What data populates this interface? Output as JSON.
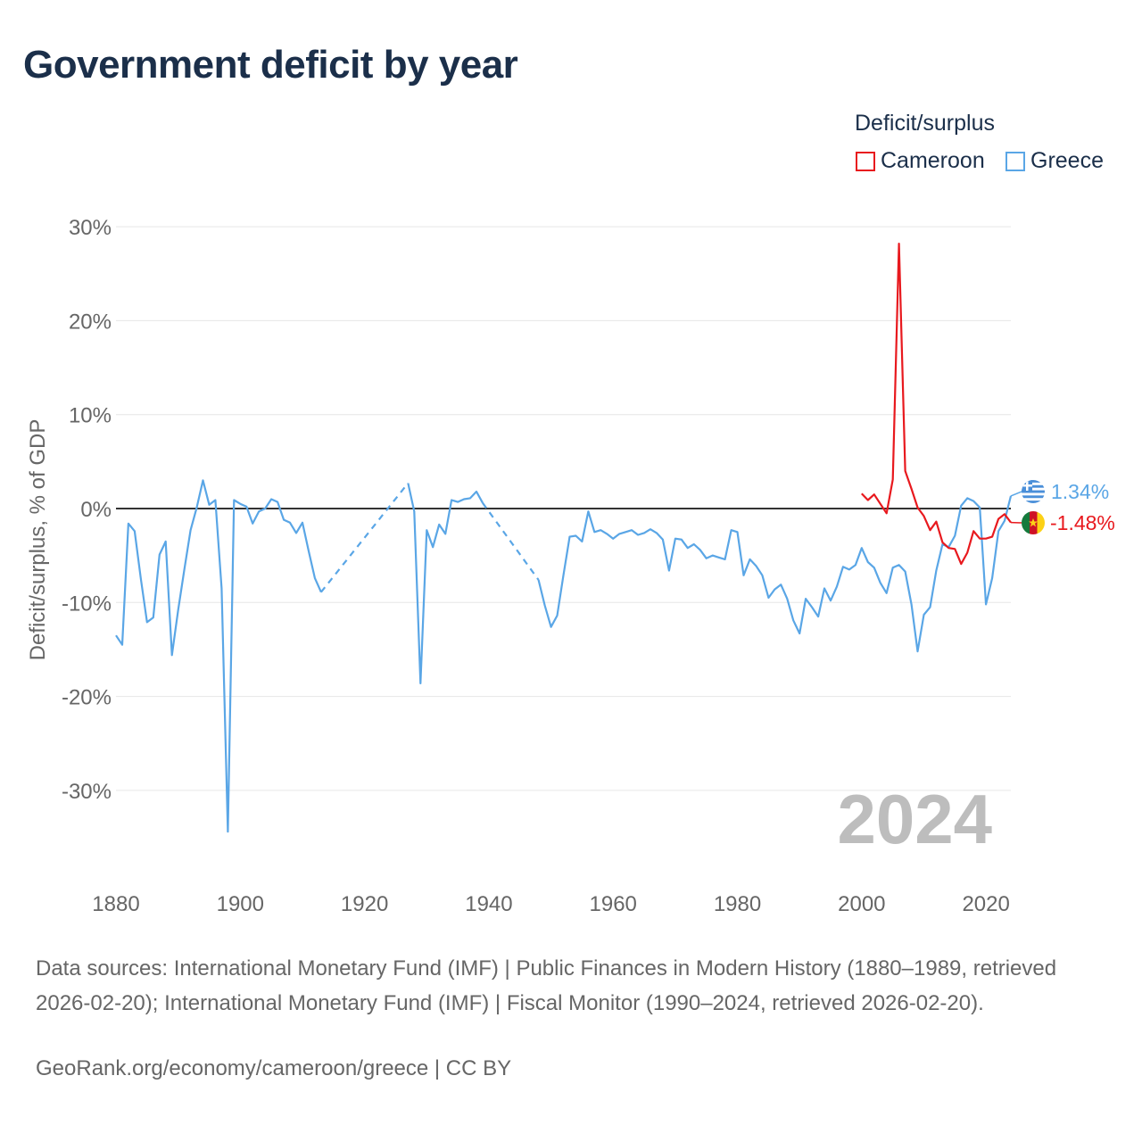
{
  "title": "Government deficit by year",
  "legend": {
    "title": "Deficit/surplus",
    "items": [
      {
        "label": "Cameroon",
        "color": "#e8191e"
      },
      {
        "label": "Greece",
        "color": "#5aa6e6"
      }
    ]
  },
  "chart_data": {
    "type": "line",
    "title": "Government deficit by year",
    "xlabel": "",
    "ylabel": "Deficit/surplus, % of GDP",
    "xlim": [
      1880,
      2024
    ],
    "ylim": [
      -39,
      31
    ],
    "x_ticks": [
      1880,
      1900,
      1920,
      1940,
      1960,
      1980,
      2000,
      2020
    ],
    "y_ticks": [
      30,
      20,
      10,
      0,
      -10,
      -20,
      -30
    ],
    "y_tick_labels": [
      "30%",
      "20%",
      "10%",
      "0%",
      "-10%",
      "-20%",
      "-30%"
    ],
    "grid": true,
    "legend_position": "top-right",
    "watermark_year": "2024",
    "series": [
      {
        "name": "Greece",
        "color": "#5aa6e6",
        "end_label": "1.34%",
        "points": [
          [
            1880,
            -13.5
          ],
          [
            1881,
            -14.5
          ],
          [
            1882,
            -1.6
          ],
          [
            1883,
            -2.4
          ],
          [
            1884,
            -7.5
          ],
          [
            1885,
            -12.1
          ],
          [
            1886,
            -11.6
          ],
          [
            1887,
            -4.9
          ],
          [
            1888,
            -3.5
          ],
          [
            1889,
            -15.6
          ],
          [
            1890,
            -10.8
          ],
          [
            1891,
            -6.5
          ],
          [
            1892,
            -2.3
          ],
          [
            1893,
            0.1
          ],
          [
            1894,
            3.0
          ],
          [
            1895,
            0.4
          ],
          [
            1896,
            0.9
          ],
          [
            1897,
            -8.5
          ],
          [
            1898,
            -34.4
          ],
          [
            1899,
            0.9
          ],
          [
            1900,
            0.5
          ],
          [
            1901,
            0.2
          ],
          [
            1902,
            -1.6
          ],
          [
            1903,
            -0.3
          ],
          [
            1904,
            0.0
          ],
          [
            1905,
            1.0
          ],
          [
            1906,
            0.7
          ],
          [
            1907,
            -1.2
          ],
          [
            1908,
            -1.5
          ],
          [
            1909,
            -2.6
          ],
          [
            1910,
            -1.5
          ],
          [
            1911,
            -4.5
          ],
          [
            1912,
            -7.4
          ],
          [
            1913,
            -8.9
          ],
          null,
          [
            1927,
            2.7
          ],
          [
            1928,
            -0.3
          ],
          [
            1929,
            -18.6
          ],
          [
            1930,
            -2.3
          ],
          [
            1931,
            -4.1
          ],
          [
            1932,
            -1.7
          ],
          [
            1933,
            -2.7
          ],
          [
            1934,
            0.9
          ],
          [
            1935,
            0.7
          ],
          [
            1936,
            1.0
          ],
          [
            1937,
            1.1
          ],
          [
            1938,
            1.8
          ],
          [
            1939,
            0.6
          ],
          null,
          [
            1948,
            -7.6
          ],
          [
            1949,
            -10.3
          ],
          [
            1950,
            -12.6
          ],
          [
            1951,
            -11.4
          ],
          [
            1952,
            -7.1
          ],
          [
            1953,
            -3.0
          ],
          [
            1954,
            -2.9
          ],
          [
            1955,
            -3.5
          ],
          [
            1956,
            -0.3
          ],
          [
            1957,
            -2.5
          ],
          [
            1958,
            -2.3
          ],
          [
            1959,
            -2.7
          ],
          [
            1960,
            -3.2
          ],
          [
            1961,
            -2.7
          ],
          [
            1962,
            -2.5
          ],
          [
            1963,
            -2.3
          ],
          [
            1964,
            -2.8
          ],
          [
            1965,
            -2.6
          ],
          [
            1966,
            -2.2
          ],
          [
            1967,
            -2.6
          ],
          [
            1968,
            -3.3
          ],
          [
            1969,
            -6.6
          ],
          [
            1970,
            -3.2
          ],
          [
            1971,
            -3.3
          ],
          [
            1972,
            -4.2
          ],
          [
            1973,
            -3.8
          ],
          [
            1974,
            -4.4
          ],
          [
            1975,
            -5.3
          ],
          [
            1976,
            -5.0
          ],
          [
            1977,
            -5.2
          ],
          [
            1978,
            -5.4
          ],
          [
            1979,
            -2.3
          ],
          [
            1980,
            -2.5
          ],
          [
            1981,
            -7.1
          ],
          [
            1982,
            -5.4
          ],
          [
            1983,
            -6.1
          ],
          [
            1984,
            -7.1
          ],
          [
            1985,
            -9.5
          ],
          [
            1986,
            -8.6
          ],
          [
            1987,
            -8.1
          ],
          [
            1988,
            -9.6
          ],
          [
            1989,
            -11.9
          ],
          [
            1990,
            -13.3
          ],
          [
            1991,
            -9.6
          ],
          [
            1992,
            -10.5
          ],
          [
            1993,
            -11.5
          ],
          [
            1994,
            -8.5
          ],
          [
            1995,
            -9.8
          ],
          [
            1996,
            -8.3
          ],
          [
            1997,
            -6.2
          ],
          [
            1998,
            -6.5
          ],
          [
            1999,
            -6.0
          ],
          [
            2000,
            -4.2
          ],
          [
            2001,
            -5.7
          ],
          [
            2002,
            -6.3
          ],
          [
            2003,
            -7.9
          ],
          [
            2004,
            -9.0
          ],
          [
            2005,
            -6.3
          ],
          [
            2006,
            -6.0
          ],
          [
            2007,
            -6.7
          ],
          [
            2008,
            -10.2
          ],
          [
            2009,
            -15.2
          ],
          [
            2010,
            -11.3
          ],
          [
            2011,
            -10.5
          ],
          [
            2012,
            -6.6
          ],
          [
            2013,
            -3.8
          ],
          [
            2014,
            -4.1
          ],
          [
            2015,
            -2.9
          ],
          [
            2016,
            0.3
          ],
          [
            2017,
            1.1
          ],
          [
            2018,
            0.8
          ],
          [
            2019,
            0.1
          ],
          [
            2020,
            -10.2
          ],
          [
            2021,
            -7.4
          ],
          [
            2022,
            -2.4
          ],
          [
            2023,
            -1.3
          ],
          [
            2024,
            1.34
          ]
        ],
        "gaps": [
          [
            [
              1913,
              -8.9
            ],
            [
              1927,
              2.7
            ]
          ],
          [
            [
              1939,
              0.6
            ],
            [
              1948,
              -7.6
            ]
          ]
        ]
      },
      {
        "name": "Cameroon",
        "color": "#e8191e",
        "end_label": "-1.48%",
        "points": [
          [
            2000,
            1.6
          ],
          [
            2001,
            0.9
          ],
          [
            2002,
            1.5
          ],
          [
            2003,
            0.5
          ],
          [
            2004,
            -0.5
          ],
          [
            2005,
            3.1
          ],
          [
            2006,
            28.2
          ],
          [
            2007,
            4.0
          ],
          [
            2008,
            2.1
          ],
          [
            2009,
            0.1
          ],
          [
            2010,
            -0.8
          ],
          [
            2011,
            -2.3
          ],
          [
            2012,
            -1.4
          ],
          [
            2013,
            -3.6
          ],
          [
            2014,
            -4.2
          ],
          [
            2015,
            -4.3
          ],
          [
            2016,
            -5.9
          ],
          [
            2017,
            -4.7
          ],
          [
            2018,
            -2.4
          ],
          [
            2019,
            -3.2
          ],
          [
            2020,
            -3.2
          ],
          [
            2021,
            -3.0
          ],
          [
            2022,
            -1.1
          ],
          [
            2023,
            -0.6
          ],
          [
            2024,
            -1.48
          ]
        ],
        "gaps": []
      }
    ]
  },
  "sources": "Data sources: International Monetary Fund (IMF) | Public Finances in Modern History (1880–1989, retrieved 2026-02-20); International Monetary Fund (IMF) | Fiscal Monitor (1990–2024, retrieved 2026-02-20).",
  "credit": "GeoRank.org/economy/cameroon/greece | CC BY",
  "flags": {
    "greece": {
      "icon": "greece-flag-icon",
      "blue": "#4a8fd9",
      "white": "#ffffff"
    },
    "cameroon": {
      "icon": "cameroon-flag-icon",
      "green": "#157a3c",
      "red": "#ce1126",
      "yellow": "#fcd116"
    }
  }
}
